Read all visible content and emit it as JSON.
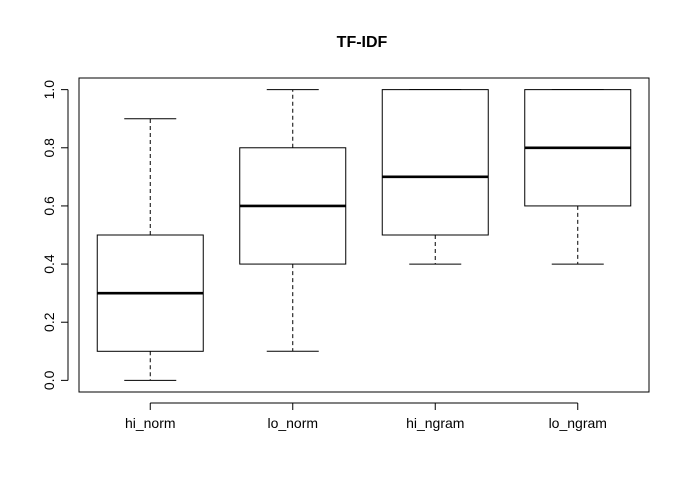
{
  "chart_data": {
    "type": "boxplot",
    "title": "TF-IDF",
    "xlabel": "",
    "ylabel": "",
    "ylim": [
      -0.04,
      1.04
    ],
    "yticks": [
      0.0,
      0.2,
      0.4,
      0.6,
      0.8,
      1.0
    ],
    "ytick_labels": [
      "0.0",
      "0.2",
      "0.4",
      "0.6",
      "0.8",
      "1.0"
    ],
    "grid": false,
    "categories": [
      "hi_norm",
      "lo_norm",
      "hi_ngram",
      "lo_ngram"
    ],
    "boxes": [
      {
        "category": "hi_norm",
        "min": 0.0,
        "q1": 0.1,
        "median": 0.3,
        "q3": 0.5,
        "max": 0.9
      },
      {
        "category": "lo_norm",
        "min": 0.1,
        "q1": 0.4,
        "median": 0.6,
        "q3": 0.8,
        "max": 1.0
      },
      {
        "category": "hi_ngram",
        "min": 0.4,
        "q1": 0.5,
        "median": 0.7,
        "q3": 1.0,
        "max": 1.0
      },
      {
        "category": "lo_ngram",
        "min": 0.4,
        "q1": 0.6,
        "median": 0.8,
        "q3": 1.0,
        "max": 1.0
      }
    ]
  }
}
